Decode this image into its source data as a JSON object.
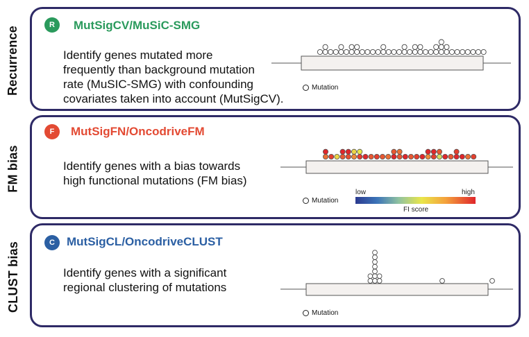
{
  "colors": {
    "border": "#2e2a66",
    "recurrence": "#2a9a5c",
    "fm": "#e34a33",
    "clust": "#2b5fa3"
  },
  "panels": [
    {
      "side_label": "Recurrence",
      "badge": "R",
      "method": "MutSigCV/MuSiC-SMG",
      "description": [
        "Identify genes mutated more",
        "frequently than background mutation",
        "rate (MuSIC-SMG) with confounding",
        "covariates taken into account (MutSigCV)."
      ],
      "legend": "Mutation"
    },
    {
      "side_label": "FM bias",
      "badge": "F",
      "method": "MutSigFN/OncodriveFM",
      "description": [
        "Identify genes with a bias towards",
        "high functional mutations (FM bias)"
      ],
      "legend": "Mutation",
      "scale_low": "low",
      "scale_high": "high",
      "scale_title": "FI score"
    },
    {
      "side_label": "CLUST bias",
      "badge": "C",
      "method": "MutSigCL/OncodriveCLUST",
      "description": [
        "Identify genes with a significant",
        "regional clustering of mutations"
      ],
      "legend": "Mutation"
    }
  ],
  "tracks": {
    "recurrence": {
      "count_per_position": [
        1,
        2,
        1,
        1,
        2,
        1,
        2,
        2,
        1,
        1,
        1,
        1,
        2,
        1,
        1,
        1,
        2,
        1,
        2,
        2,
        1,
        1,
        2,
        3,
        2,
        1,
        1,
        1,
        1,
        1,
        1,
        1
      ]
    },
    "fm": {
      "fi_scores_per_position": [
        [
          0.85,
          1
        ],
        [
          0.95
        ],
        [
          0.6
        ],
        [
          0.9,
          1
        ],
        [
          0.92,
          1
        ],
        [
          0.8,
          0.6
        ],
        [
          0.95,
          0.55
        ],
        [
          1
        ],
        [
          0.9
        ],
        [
          0.95
        ],
        [
          0.9
        ],
        [
          0.85
        ],
        [
          1,
          0.9
        ],
        [
          0.9,
          0.85
        ],
        [
          1
        ],
        [
          0.9
        ],
        [
          0.95
        ],
        [
          1
        ],
        [
          0.8,
          1
        ],
        [
          0.95,
          1
        ],
        [
          0.5,
          0.9
        ],
        [
          1
        ],
        [
          0.9
        ],
        [
          1,
          0.95
        ],
        [
          1
        ],
        [
          0.85
        ],
        [
          0.95
        ]
      ]
    },
    "clust": {
      "cluster_heights": [
        2,
        7,
        2
      ],
      "outliers": 2
    }
  }
}
